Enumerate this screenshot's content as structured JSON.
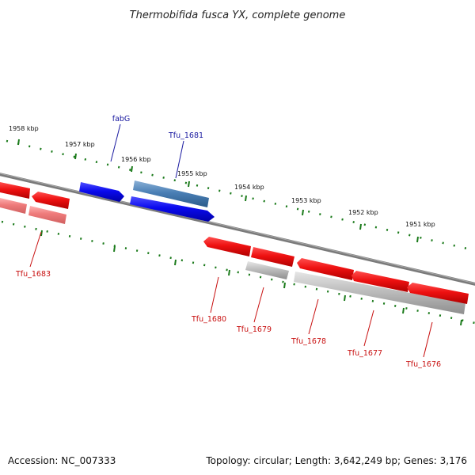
{
  "title": "Thermobifida fusca YX, complete genome",
  "footer": {
    "accession": "Accession: NC_007333",
    "topology": "Topology: circular; Length: 3,642,249 bp; Genes: 3,176"
  },
  "colors": {
    "backbone": "#777777",
    "tick": "#1a7a1a",
    "forward_gene": "#0a0aee",
    "forward_gene_alt": "#4a7fb5",
    "reverse_gene": "#ee1111",
    "reverse_gene_faded": "#ee8080",
    "pseudogene": "#b8b8b8",
    "forward_label": "#1a1aa0",
    "reverse_label": "#c81010"
  },
  "ruler_labels": [
    "1958 kbp",
    "1957 kbp",
    "1956 kbp",
    "1955 kbp",
    "1954 kbp",
    "1953 kbp",
    "1952 kbp",
    "1951 kbp"
  ],
  "genes": {
    "fabG": "fabG",
    "tfu_1681": "Tfu_1681",
    "tfu_1683": "Tfu_1683",
    "tfu_1680": "Tfu_1680",
    "tfu_1679": "Tfu_1679",
    "tfu_1678": "Tfu_1678",
    "tfu_1677": "Tfu_1677",
    "tfu_1676": "Tfu_1676"
  }
}
